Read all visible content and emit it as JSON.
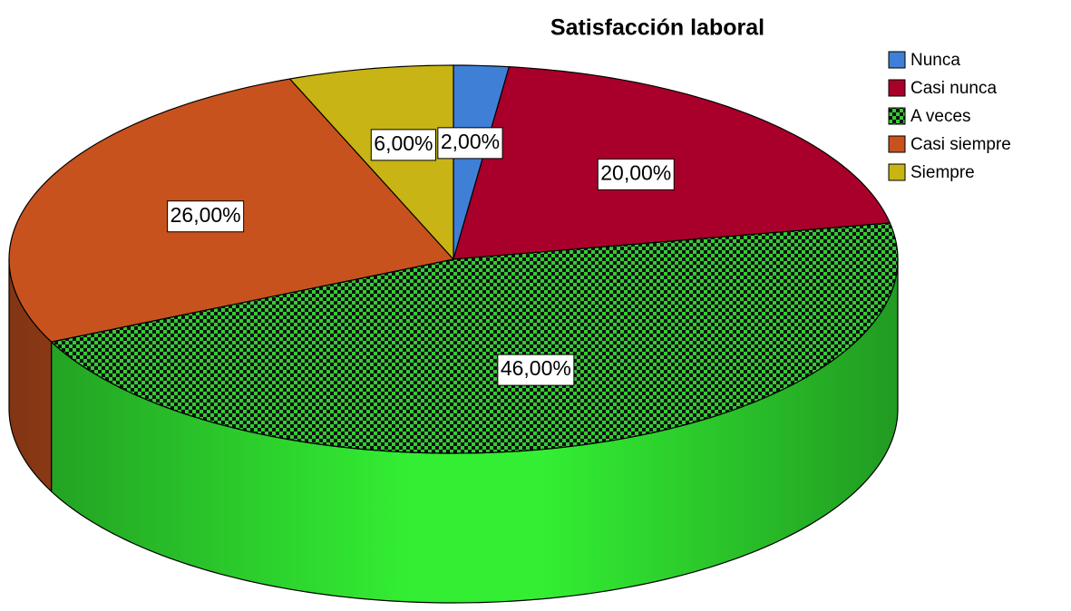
{
  "chart_data": {
    "type": "pie",
    "title": "Satisfacción laboral",
    "categories": [
      "Nunca",
      "Casi nunca",
      "A veces",
      "Casi siempre",
      "Siempre"
    ],
    "values": [
      2,
      20,
      46,
      26,
      6
    ],
    "value_labels": [
      "2,00%",
      "20,00%",
      "46,00%",
      "26,00%",
      "6,00%"
    ],
    "colors": [
      "#3f7fd6",
      "#a8002a",
      "#33ee33",
      "#c8521e",
      "#c8b414"
    ],
    "patterns": [
      null,
      null,
      "checker",
      null,
      null
    ],
    "legend": "top-right",
    "style": "3d"
  }
}
